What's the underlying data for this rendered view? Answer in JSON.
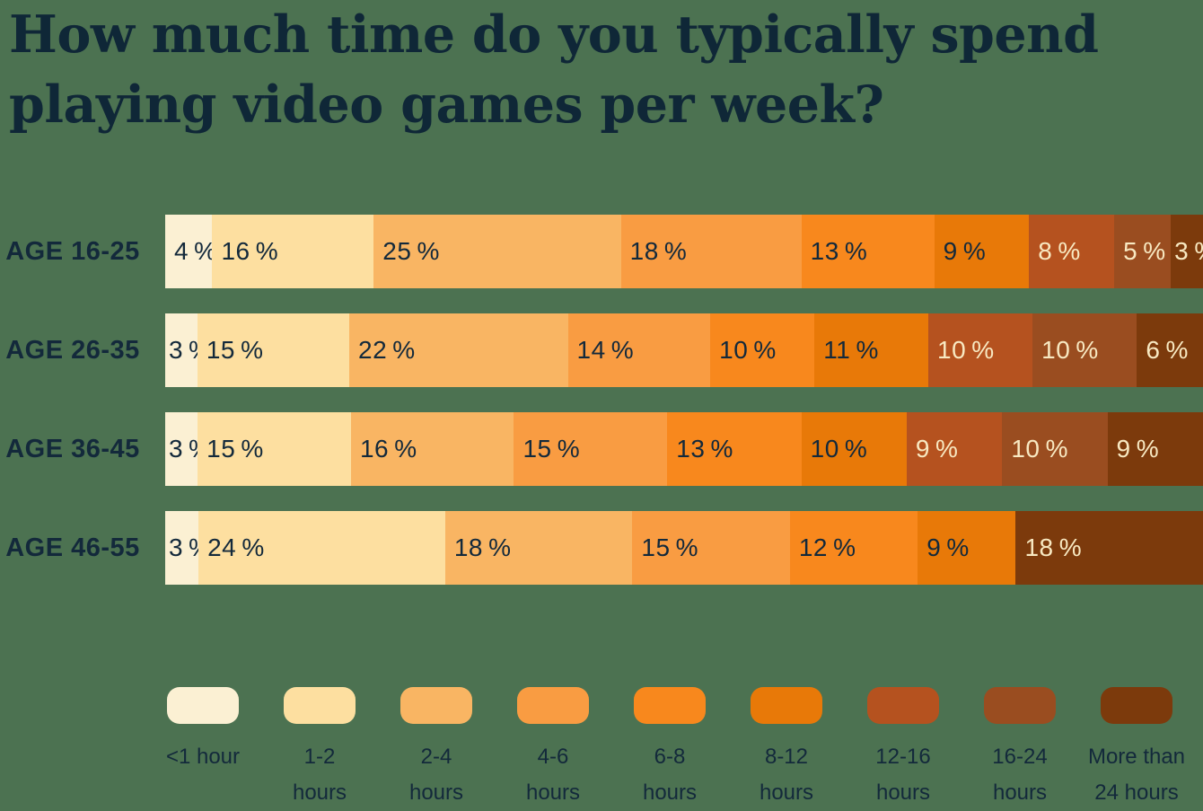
{
  "title": {
    "lines": [
      "How much time do you typically spend",
      "playing video games per week?"
    ],
    "text": "How much time do you typically spend playing video games per week?"
  },
  "colors": {
    "background": "#4C7251",
    "text_dark": "#13293B",
    "text_light": "#F8E9C2",
    "title": "#0F2737"
  },
  "chart_data": {
    "type": "bar",
    "variant": "stacked-horizontal",
    "unit": "%",
    "legend_position": "bottom",
    "categories": [
      {
        "label": "<1 hour",
        "lines": [
          "<1 hour"
        ],
        "color": "#FBF0D3",
        "label_color": "dark"
      },
      {
        "label": "1-2 hours",
        "lines": [
          "1-2",
          "hours"
        ],
        "color": "#FDDFA0",
        "label_color": "dark"
      },
      {
        "label": "2-4 hours",
        "lines": [
          "2-4",
          "hours"
        ],
        "color": "#F9B563",
        "label_color": "dark"
      },
      {
        "label": "4-6 hours",
        "lines": [
          "4-6",
          "hours"
        ],
        "color": "#F99C42",
        "label_color": "dark"
      },
      {
        "label": "6-8 hours",
        "lines": [
          "6-8",
          "hours"
        ],
        "color": "#F8881D",
        "label_color": "dark"
      },
      {
        "label": "8-12 hours",
        "lines": [
          "8-12",
          "hours"
        ],
        "color": "#E87908",
        "label_color": "dark"
      },
      {
        "label": "12-16 hours",
        "lines": [
          "12-16",
          "hours"
        ],
        "color": "#B5521F",
        "label_color": "light"
      },
      {
        "label": "16-24 hours",
        "lines": [
          "16-24",
          "hours"
        ],
        "color": "#9A4D20",
        "label_color": "light"
      },
      {
        "label": "More than 24 hours",
        "lines": [
          "More than",
          "24 hours"
        ],
        "color": "#7C3A0C",
        "label_color": "light"
      }
    ],
    "rows": [
      {
        "label": "AGE 16-25",
        "segments": [
          {
            "category": 0,
            "value": 4
          },
          {
            "category": 1,
            "value": 16
          },
          {
            "category": 2,
            "value": 25
          },
          {
            "category": 3,
            "value": 18
          },
          {
            "category": 4,
            "value": 13
          },
          {
            "category": 5,
            "value": 9
          },
          {
            "category": 6,
            "value": 8
          },
          {
            "category": 7,
            "value": 5
          },
          {
            "category": 8,
            "value": 3
          }
        ]
      },
      {
        "label": "AGE 26-35",
        "segments": [
          {
            "category": 0,
            "value": 3
          },
          {
            "category": 1,
            "value": 15
          },
          {
            "category": 2,
            "value": 22
          },
          {
            "category": 3,
            "value": 14
          },
          {
            "category": 4,
            "value": 10
          },
          {
            "category": 5,
            "value": 11
          },
          {
            "category": 6,
            "value": 10
          },
          {
            "category": 7,
            "value": 10
          },
          {
            "category": 8,
            "value": 6
          }
        ]
      },
      {
        "label": "AGE 36-45",
        "segments": [
          {
            "category": 0,
            "value": 3
          },
          {
            "category": 1,
            "value": 15
          },
          {
            "category": 2,
            "value": 16
          },
          {
            "category": 3,
            "value": 15
          },
          {
            "category": 4,
            "value": 13
          },
          {
            "category": 5,
            "value": 10
          },
          {
            "category": 6,
            "value": 9
          },
          {
            "category": 7,
            "value": 10
          },
          {
            "category": 8,
            "value": 9
          }
        ]
      },
      {
        "label": "AGE 46-55",
        "segments": [
          {
            "category": 0,
            "value": 3
          },
          {
            "category": 1,
            "value": 24
          },
          {
            "category": 2,
            "value": 18
          },
          {
            "category": 3,
            "value": 15
          },
          {
            "category": 4,
            "value": 12
          },
          {
            "category": 5,
            "value": 9
          },
          {
            "category": 8,
            "value": 18
          }
        ]
      }
    ]
  }
}
